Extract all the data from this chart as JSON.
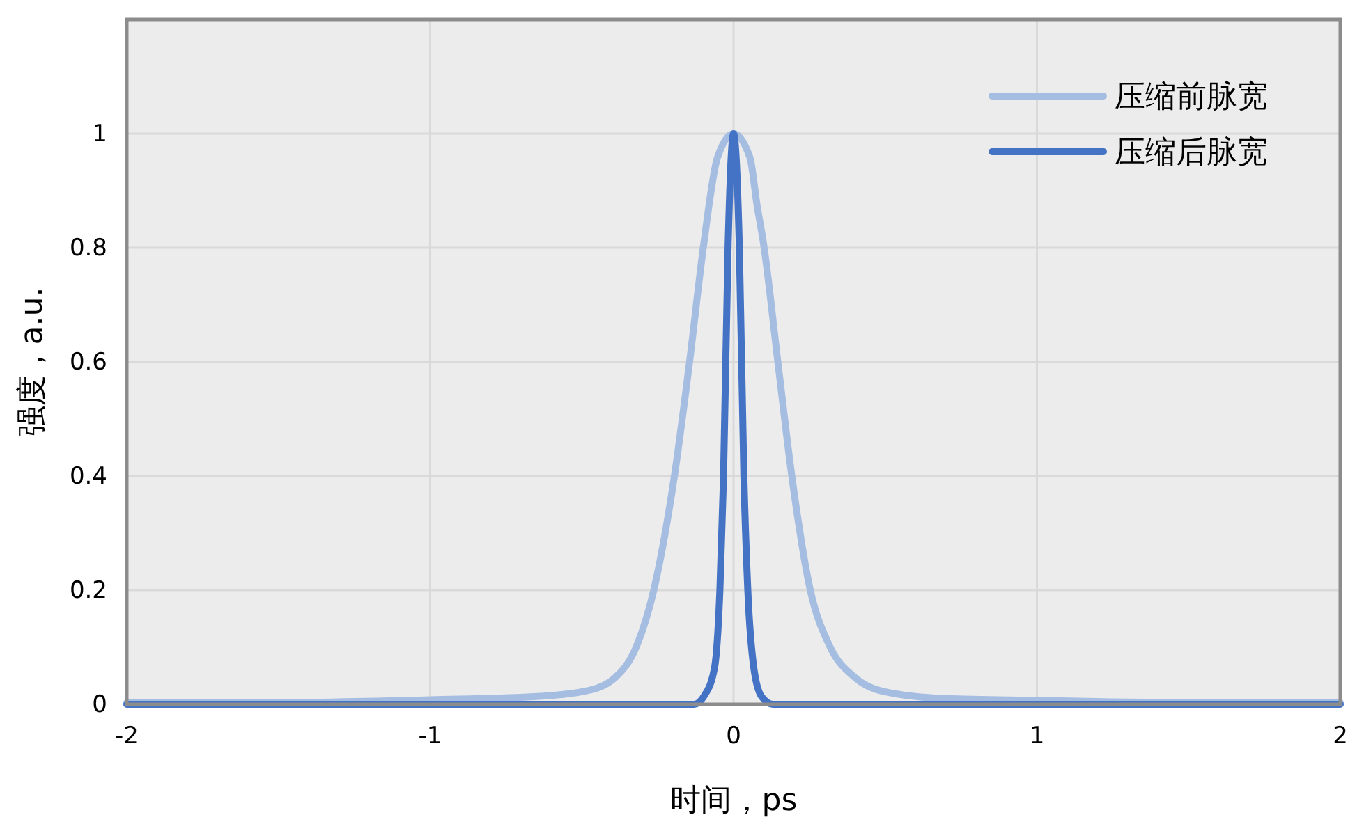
{
  "chart_data": {
    "type": "line",
    "xlabel": "时间，ps",
    "ylabel": "强度，a.u.",
    "xlim": [
      -2,
      2
    ],
    "xticks": [
      -2,
      -1,
      0,
      1,
      2
    ],
    "ylim": [
      0,
      1.2
    ],
    "yticks": [
      0,
      0.2,
      0.4,
      0.6,
      0.8,
      1
    ],
    "grid": true,
    "legend": "top right",
    "marker": "none",
    "line_style": "solid",
    "series": [
      {
        "name": "压缩前脉宽",
        "color": "#a6bde2",
        "x": [
          -2,
          -1.5,
          -1,
          -0.67,
          -0.49,
          -0.39,
          -0.318,
          -0.263,
          -0.195,
          -0.145,
          -0.099,
          -0.053,
          0,
          0.054,
          0.077,
          0.1,
          0.146,
          0.192,
          0.253,
          0.315,
          0.4,
          0.49,
          0.7,
          1,
          1.5,
          2
        ],
        "values": [
          0.003,
          0.003,
          0.008,
          0.013,
          0.023,
          0.047,
          0.104,
          0.2,
          0.4,
          0.6,
          0.803,
          0.958,
          1,
          0.958,
          0.876,
          0.803,
          0.6,
          0.4,
          0.2,
          0.104,
          0.047,
          0.023,
          0.01,
          0.007,
          0.003,
          0.003
        ]
      },
      {
        "name": "压缩后脉宽",
        "color": "#4472c4",
        "x": [
          -2,
          -0.13,
          -0.099,
          -0.063,
          -0.045,
          -0.033,
          -0.018,
          0,
          0.019,
          0.034,
          0.047,
          0.067,
          0.093,
          0.13,
          2
        ],
        "values": [
          0,
          0,
          0.013,
          0.063,
          0.2,
          0.4,
          0.803,
          1,
          0.803,
          0.4,
          0.2,
          0.063,
          0.013,
          0,
          0
        ]
      }
    ]
  }
}
